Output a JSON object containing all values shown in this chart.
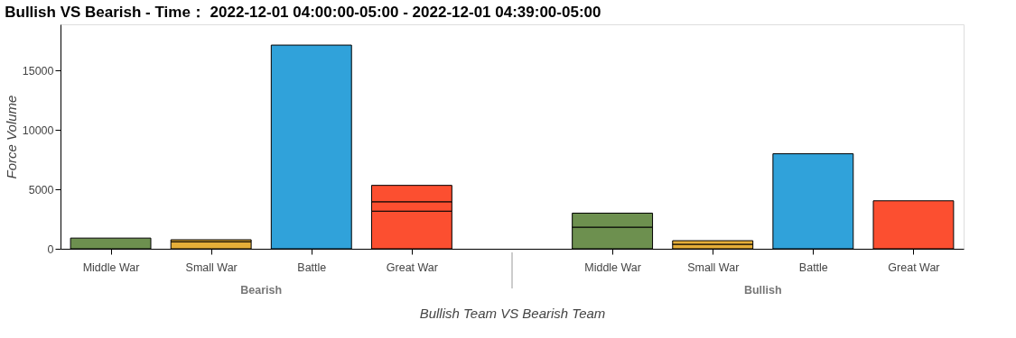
{
  "chart_data": {
    "type": "bar",
    "title": "Bullish VS Bearish - Time： 2022-12-01 04:00:00-05:00 - 2022-12-01 04:39:00-05:00",
    "xlabel": "Bullish Team VS Bearish Team",
    "ylabel": "Force Volume",
    "categories": [
      "Middle War",
      "Small War",
      "Battle",
      "Great War",
      "Middle War",
      "Small War",
      "Battle",
      "Great War"
    ],
    "annotations": [
      "Bearish",
      "Bullish"
    ],
    "stacked": true,
    "series": [
      {
        "colors": [
          "#6d904f",
          "#e5ae38",
          "#30a2da",
          "#fc4f30",
          "#6d904f",
          "#e5ae38",
          "#30a2da",
          "#fc4f30"
        ],
        "values": [
          900,
          600,
          17150,
          3170,
          1820,
          380,
          8000,
          4040
        ]
      },
      {
        "colors": [
          "#6d904f",
          "#e5ae38",
          "#30a2da",
          "#fc4f30",
          "#6d904f",
          "#e5ae38",
          "#30a2da",
          "#fc4f30"
        ],
        "values": [
          null,
          160,
          null,
          790,
          1180,
          300,
          null,
          null
        ]
      },
      {
        "colors": [
          "#6d904f",
          "#e5ae38",
          "#30a2da",
          "#fc4f30",
          "#6d904f",
          "#e5ae38",
          "#30a2da",
          "#fc4f30"
        ],
        "values": [
          null,
          null,
          null,
          1380,
          null,
          null,
          null,
          null
        ]
      }
    ],
    "ylim": [
      0,
      18900
    ],
    "yticks": [
      0,
      5000,
      10000,
      15000
    ],
    "grid": false
  }
}
